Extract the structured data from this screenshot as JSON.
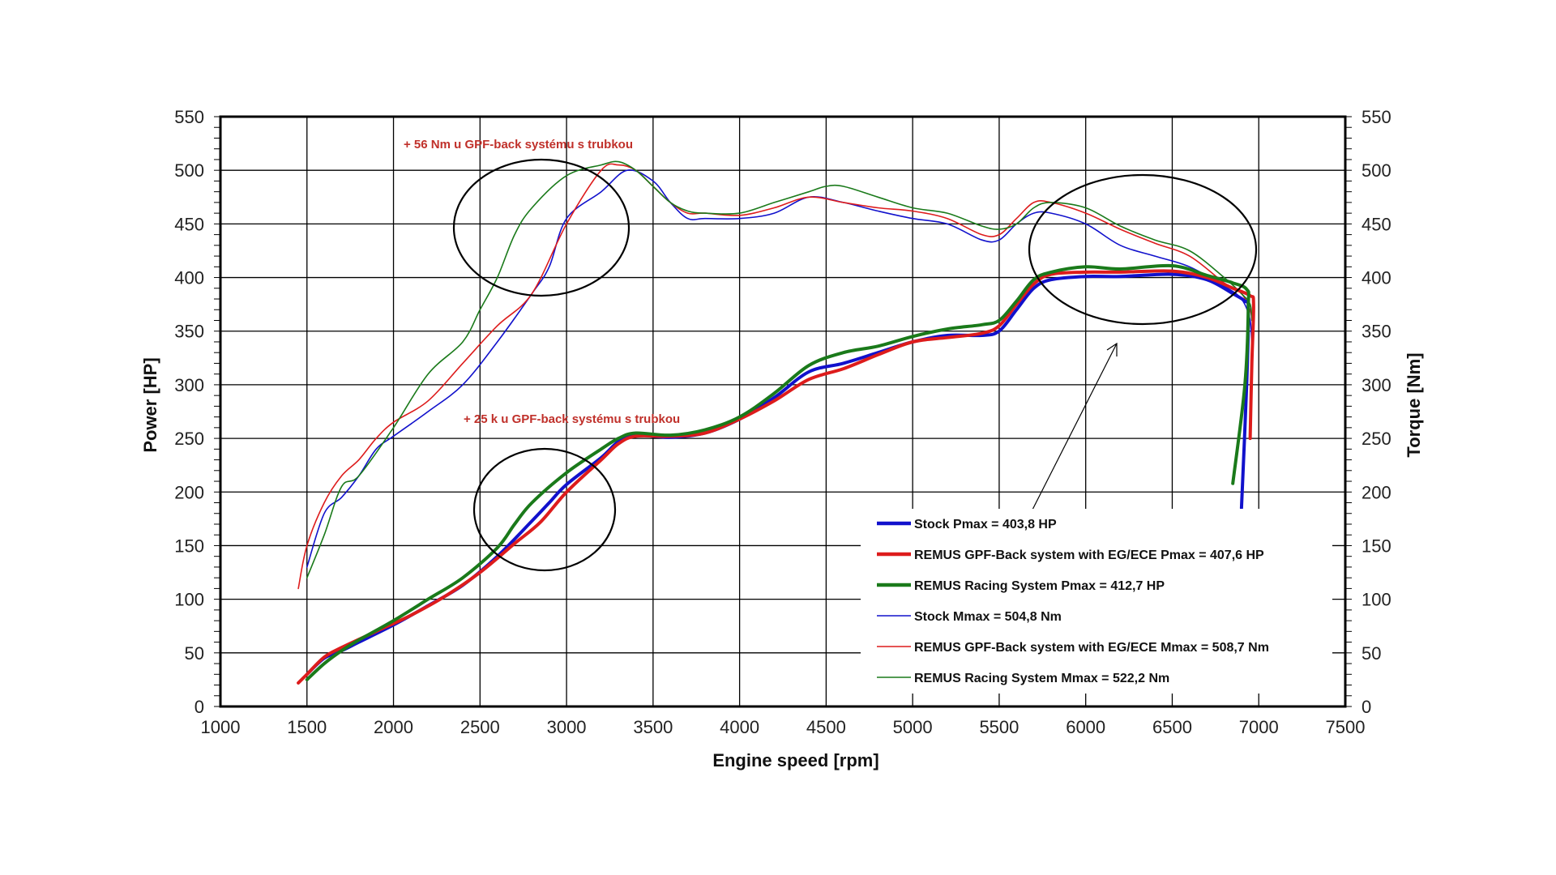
{
  "chart_data": {
    "type": "line",
    "xlabel": "Engine speed [rpm]",
    "ylabel": "Power [HP]",
    "y2label": "Torque [Nm]",
    "xlim": [
      1000,
      7500
    ],
    "ylim": [
      0,
      550
    ],
    "y2lim": [
      0,
      550
    ],
    "x_ticks": [
      1000,
      1500,
      2000,
      2500,
      3000,
      3500,
      4000,
      4500,
      5000,
      5500,
      6000,
      6500,
      7000,
      7500
    ],
    "y_ticks": [
      0,
      50,
      100,
      150,
      200,
      250,
      300,
      350,
      400,
      450,
      500,
      550
    ],
    "grid": true,
    "legend_position": "bottom-right",
    "colors": {
      "stock": "#1111cc",
      "gpf": "#dd1c1c",
      "racing": "#1a7a1a"
    },
    "series": [
      {
        "name": "Stock Pmax = 403,8 HP",
        "axis": "power",
        "color": "#1111cc",
        "width": "thick",
        "x": [
          1500,
          1600,
          1700,
          1800,
          2000,
          2200,
          2400,
          2600,
          2800,
          2900,
          3000,
          3200,
          3300,
          3400,
          3600,
          3800,
          4000,
          4200,
          4400,
          4600,
          4800,
          5000,
          5200,
          5400,
          5500,
          5600,
          5700,
          5800,
          6000,
          6200,
          6500,
          6700,
          6850,
          6920,
          6940,
          6930,
          6900
        ],
        "y": [
          30,
          45,
          52,
          60,
          76,
          94,
          113,
          140,
          173,
          190,
          207,
          232,
          247,
          253,
          251,
          255,
          268,
          288,
          312,
          320,
          330,
          340,
          346,
          346,
          350,
          370,
          390,
          398,
          401,
          401,
          403,
          398,
          385,
          378,
          370,
          300,
          185
        ]
      },
      {
        "name": "REMUS GPF-Back system with EG/ECE Pmax = 407,6 HP",
        "axis": "power",
        "color": "#dd1c1c",
        "width": "thick",
        "x": [
          1450,
          1500,
          1600,
          1700,
          1900,
          2100,
          2300,
          2500,
          2700,
          2850,
          3000,
          3200,
          3300,
          3400,
          3600,
          3800,
          4000,
          4200,
          4400,
          4600,
          4800,
          5000,
          5200,
          5400,
          5500,
          5600,
          5700,
          5800,
          6000,
          6200,
          6500,
          6700,
          6850,
          6950,
          6970,
          6960,
          6950
        ],
        "y": [
          22,
          30,
          46,
          55,
          70,
          85,
          103,
          125,
          152,
          172,
          200,
          230,
          245,
          252,
          252,
          255,
          268,
          285,
          305,
          315,
          328,
          340,
          344,
          348,
          355,
          375,
          394,
          403,
          405,
          405,
          406,
          400,
          390,
          383,
          375,
          320,
          250
        ]
      },
      {
        "name": "REMUS Racing System Pmax = 412,7 HP",
        "axis": "power",
        "color": "#1a7a1a",
        "width": "thick",
        "x": [
          1500,
          1600,
          1700,
          1800,
          2000,
          2200,
          2400,
          2600,
          2700,
          2800,
          3000,
          3200,
          3300,
          3400,
          3600,
          3800,
          4000,
          4200,
          4400,
          4600,
          4800,
          5000,
          5200,
          5400,
          5500,
          5600,
          5700,
          5800,
          6000,
          6200,
          6500,
          6700,
          6850,
          6930,
          6940,
          6920,
          6850
        ],
        "y": [
          25,
          40,
          52,
          62,
          80,
          100,
          120,
          148,
          170,
          190,
          218,
          240,
          250,
          255,
          253,
          258,
          270,
          292,
          318,
          330,
          336,
          345,
          352,
          356,
          360,
          378,
          398,
          405,
          410,
          408,
          411,
          402,
          395,
          389,
          375,
          300,
          208
        ]
      },
      {
        "name": "Stock Mmax =  504,8 Nm",
        "axis": "torque",
        "color": "#1111cc",
        "width": "thin",
        "x": [
          1500,
          1600,
          1700,
          1800,
          1900,
          2000,
          2200,
          2400,
          2600,
          2800,
          2900,
          3000,
          3200,
          3350,
          3500,
          3600,
          3700,
          3800,
          4000,
          4200,
          4400,
          4600,
          4800,
          5000,
          5200,
          5400,
          5500,
          5600,
          5700,
          5800,
          6000,
          6200,
          6400,
          6600,
          6800,
          6900,
          6950,
          6960
        ],
        "y": [
          130,
          180,
          195,
          215,
          240,
          252,
          275,
          300,
          340,
          385,
          410,
          455,
          480,
          500,
          490,
          470,
          455,
          455,
          455,
          460,
          475,
          470,
          462,
          455,
          450,
          435,
          435,
          450,
          460,
          460,
          450,
          430,
          420,
          410,
          392,
          380,
          360,
          330
        ]
      },
      {
        "name": "REMUS GPF-Back system with EG/ECE Mmax = 508,7 Nm",
        "axis": "torque",
        "color": "#dd1c1c",
        "width": "thin",
        "x": [
          1450,
          1500,
          1600,
          1700,
          1800,
          1900,
          2000,
          2200,
          2400,
          2600,
          2800,
          3000,
          3200,
          3300,
          3400,
          3500,
          3600,
          3700,
          3800,
          4000,
          4200,
          4400,
          4600,
          4800,
          5000,
          5200,
          5400,
          5500,
          5600,
          5700,
          5800,
          6000,
          6200,
          6400,
          6600,
          6800,
          6900,
          6950,
          6960
        ],
        "y": [
          110,
          150,
          190,
          215,
          230,
          250,
          265,
          285,
          320,
          355,
          385,
          450,
          500,
          505,
          500,
          485,
          470,
          460,
          460,
          458,
          465,
          475,
          470,
          465,
          462,
          455,
          440,
          440,
          455,
          470,
          470,
          460,
          445,
          432,
          420,
          395,
          385,
          370,
          360
        ]
      },
      {
        "name": "REMUS Racing System Mmax =  522,2 Nm",
        "axis": "torque",
        "color": "#1a7a1a",
        "width": "thin",
        "x": [
          1500,
          1600,
          1700,
          1800,
          2000,
          2200,
          2400,
          2500,
          2600,
          2700,
          2800,
          3000,
          3200,
          3300,
          3400,
          3500,
          3600,
          3700,
          3800,
          4000,
          4200,
          4400,
          4500,
          4600,
          4800,
          5000,
          5200,
          5400,
          5500,
          5600,
          5700,
          5800,
          6000,
          6200,
          6400,
          6600,
          6800,
          6900,
          6950,
          6960
        ],
        "y": [
          120,
          160,
          205,
          215,
          260,
          310,
          340,
          370,
          400,
          440,
          465,
          495,
          505,
          508,
          500,
          485,
          470,
          462,
          460,
          460,
          470,
          480,
          485,
          485,
          475,
          465,
          460,
          448,
          445,
          450,
          465,
          470,
          465,
          448,
          435,
          425,
          400,
          385,
          375,
          360
        ]
      }
    ],
    "annotations": [
      {
        "text": "+ 56 Nm u GPF-back systému s trubkou",
        "color": "#c0302a"
      },
      {
        "text": "+ 25 k u GPF-back systému s trubkou",
        "color": "#c0302a"
      }
    ]
  }
}
